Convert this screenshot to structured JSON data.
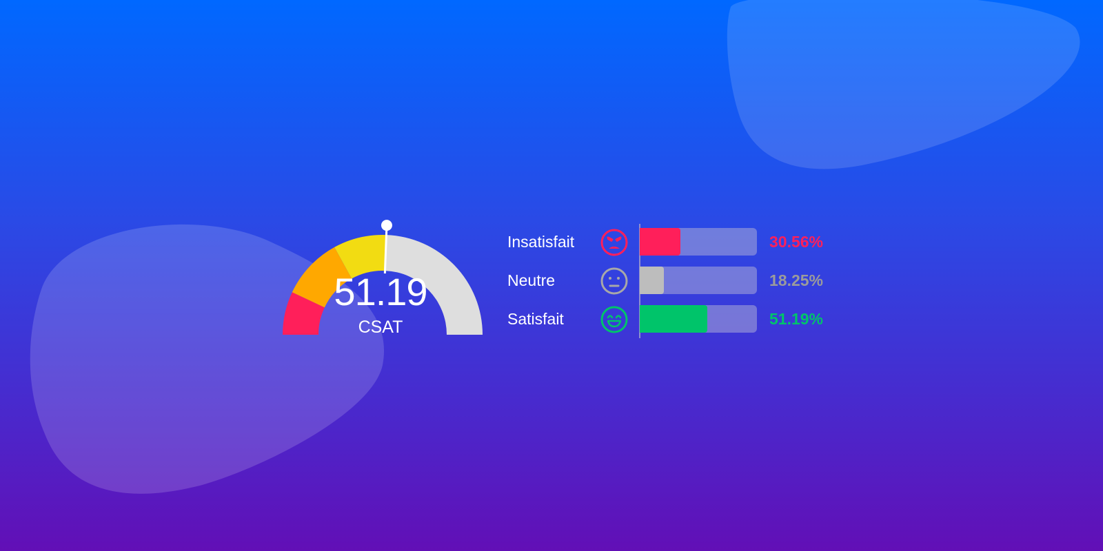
{
  "chart_data": {
    "type": "gauge-and-bar",
    "gauge": {
      "value": 51.19,
      "value_label": "51.19",
      "label": "CSAT",
      "range": [
        0,
        100
      ],
      "segments": [
        {
          "from": 0,
          "to": 14,
          "color": "#ff1f5a"
        },
        {
          "from": 14,
          "to": 34,
          "color": "#ffa800"
        },
        {
          "from": 34,
          "to": 51.19,
          "color": "#f2dc12"
        },
        {
          "from": 51.19,
          "to": 100,
          "color": "#dedede"
        }
      ]
    },
    "bars": {
      "xlim": [
        0,
        100
      ],
      "items": [
        {
          "label": "Insatisfait",
          "value": 30.56,
          "value_label": "30.56%",
          "color": "#ff1f5a",
          "icon": "angry-face-icon"
        },
        {
          "label": "Neutre",
          "value": 18.25,
          "value_label": "18.25%",
          "color": "#bdbdbd",
          "icon": "neutral-face-icon"
        },
        {
          "label": "Satisfait",
          "value": 51.19,
          "value_label": "51.19%",
          "color": "#00c46a",
          "icon": "happy-face-icon"
        }
      ]
    }
  },
  "colors": {
    "text": "#ffffff",
    "neutral_value_text": "#9b9b9b",
    "track": "#aaaad7"
  }
}
